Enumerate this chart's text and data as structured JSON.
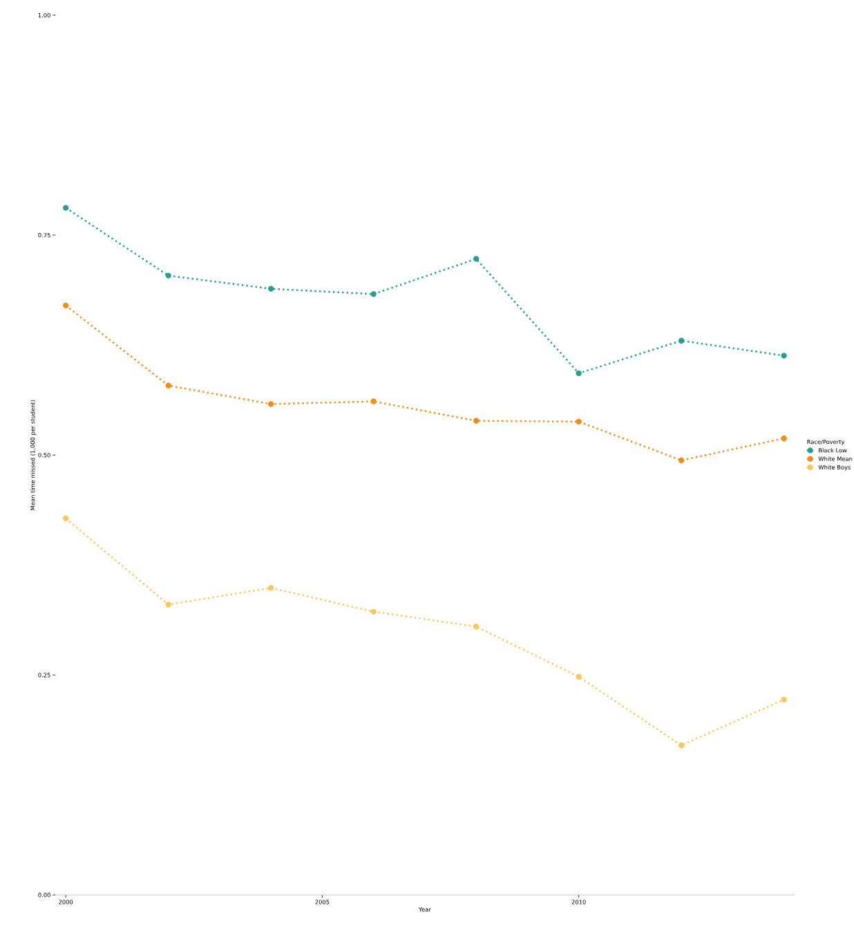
{
  "chart_data": {
    "type": "line",
    "xlabel": "Year",
    "ylabel": "Mean time missed (1,000 per student)",
    "legend_title": "Race/Poverty",
    "x": [
      2000,
      2002,
      2004,
      2006,
      2008,
      2010,
      2012,
      2014
    ],
    "series": [
      {
        "name": "Black Low",
        "color": "#2a9d8f",
        "values": [
          0.781,
          0.704,
          0.689,
          0.683,
          0.723,
          0.593,
          0.63,
          0.613
        ]
      },
      {
        "name": "White Mean",
        "color": "#f08c1e",
        "values": [
          0.67,
          0.579,
          0.558,
          0.561,
          0.539,
          0.538,
          0.494,
          0.519
        ]
      },
      {
        "name": "White Boys",
        "color": "#f6c85f",
        "values": [
          0.428,
          0.33,
          0.349,
          0.322,
          0.305,
          0.248,
          0.17,
          0.222
        ]
      }
    ],
    "xlim": [
      1999.8,
      2014.2
    ],
    "xticks": [
      2000,
      2005,
      2010
    ],
    "ylim": [
      0,
      1
    ],
    "yticks": [
      {
        "value": 0,
        "label": "0.00"
      },
      {
        "value": 0.25,
        "label": "0.25"
      },
      {
        "value": 0.5,
        "label": "0.50"
      },
      {
        "value": 0.75,
        "label": "0.75"
      },
      {
        "value": 1,
        "label": "1.00"
      }
    ],
    "grid": false,
    "legend": "right",
    "marker": "circle",
    "line_style": "dotted"
  }
}
